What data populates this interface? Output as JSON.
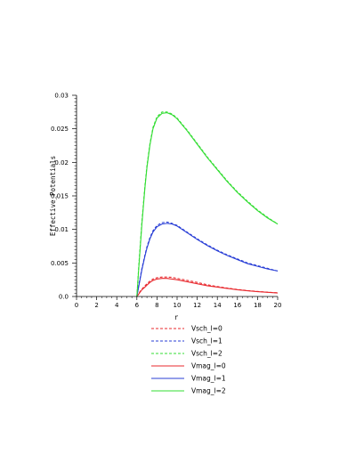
{
  "chart_data": {
    "type": "line",
    "title": "",
    "xlabel": "r",
    "ylabel": "Effective_Potentials",
    "xlim": [
      0,
      20
    ],
    "ylim": [
      0,
      0.03
    ],
    "x_ticks": [
      0,
      2,
      4,
      6,
      8,
      10,
      12,
      14,
      16,
      18,
      20
    ],
    "x_tick_labels": [
      "0",
      "2",
      "4",
      "6",
      "8",
      "10",
      "12",
      "14",
      "16",
      "18",
      "20"
    ],
    "y_ticks": [
      0,
      0.005,
      0.01,
      0.015,
      0.02,
      0.025,
      0.03
    ],
    "y_tick_labels": [
      "0.0",
      "0.005",
      "0.01",
      "0.015",
      "0.02",
      "0.025",
      "0.03"
    ],
    "grid": false,
    "legend_position": "bottom",
    "series": [
      {
        "name": "Vsch_l=0",
        "color": "#e8282d",
        "style": "dashed",
        "x": [
          6.0,
          6.2,
          6.5,
          6.8,
          7.0,
          7.3,
          7.6,
          8.0,
          8.5,
          9.0,
          9.5,
          10.0,
          11.0,
          12.0,
          13.0,
          14.0,
          15.0,
          16.0,
          17.0,
          18.0,
          19.0,
          20.0
        ],
        "y": [
          0.0,
          0.0005,
          0.0011,
          0.0016,
          0.0019,
          0.0023,
          0.0026,
          0.0028,
          0.0029,
          0.0029,
          0.00285,
          0.0027,
          0.0024,
          0.0021,
          0.00175,
          0.00148,
          0.00125,
          0.00105,
          0.00088,
          0.00075,
          0.00064,
          0.00055
        ]
      },
      {
        "name": "Vsch_l=1",
        "color": "#2a3fd6",
        "style": "dashed",
        "x": [
          6.0,
          6.2,
          6.5,
          6.8,
          7.0,
          7.3,
          7.6,
          8.0,
          8.5,
          9.0,
          9.5,
          10.0,
          11.0,
          12.0,
          13.0,
          14.0,
          15.0,
          16.0,
          17.0,
          18.0,
          19.0,
          20.0
        ],
        "y": [
          0.0,
          0.0018,
          0.0042,
          0.0062,
          0.0074,
          0.0088,
          0.0098,
          0.0106,
          0.011,
          0.0111,
          0.0109,
          0.0106,
          0.0096,
          0.0086,
          0.0077,
          0.0069,
          0.0062,
          0.0056,
          0.005,
          0.0046,
          0.0042,
          0.0038
        ]
      },
      {
        "name": "Vsch_l=2",
        "color": "#33dd33",
        "style": "dashed",
        "x": [
          6.0,
          6.2,
          6.5,
          6.8,
          7.0,
          7.3,
          7.6,
          8.0,
          8.5,
          9.0,
          9.5,
          10.0,
          11.0,
          12.0,
          13.0,
          14.0,
          15.0,
          16.0,
          17.0,
          18.0,
          19.0,
          20.0
        ],
        "y": [
          0.0,
          0.0048,
          0.0112,
          0.0165,
          0.0195,
          0.0228,
          0.0252,
          0.0268,
          0.0275,
          0.0275,
          0.0272,
          0.0266,
          0.0248,
          0.0228,
          0.0208,
          0.019,
          0.0172,
          0.0156,
          0.0142,
          0.0129,
          0.0118,
          0.0108
        ]
      },
      {
        "name": "Vmag_l=0",
        "color": "#e8282d",
        "style": "solid",
        "x": [
          6.0,
          6.2,
          6.5,
          6.8,
          7.0,
          7.3,
          7.6,
          8.0,
          8.5,
          9.0,
          9.5,
          10.0,
          11.0,
          12.0,
          13.0,
          14.0,
          15.0,
          16.0,
          17.0,
          18.0,
          19.0,
          20.0
        ],
        "y": [
          0.0,
          0.0004,
          0.001,
          0.0014,
          0.0017,
          0.0021,
          0.0024,
          0.0026,
          0.0027,
          0.0027,
          0.0026,
          0.0025,
          0.0022,
          0.0019,
          0.0016,
          0.0014,
          0.0012,
          0.001,
          0.00085,
          0.00072,
          0.00062,
          0.00052
        ]
      },
      {
        "name": "Vmag_l=1",
        "color": "#2a3fd6",
        "style": "solid",
        "x": [
          6.0,
          6.2,
          6.5,
          6.8,
          7.0,
          7.3,
          7.6,
          8.0,
          8.5,
          9.0,
          9.5,
          10.0,
          11.0,
          12.0,
          13.0,
          14.0,
          15.0,
          16.0,
          17.0,
          18.0,
          19.0,
          20.0
        ],
        "y": [
          0.0,
          0.0016,
          0.004,
          0.006,
          0.0072,
          0.0086,
          0.0096,
          0.0104,
          0.0108,
          0.0109,
          0.0108,
          0.0105,
          0.0095,
          0.0085,
          0.0076,
          0.0068,
          0.0061,
          0.0055,
          0.0049,
          0.0045,
          0.0041,
          0.0038
        ]
      },
      {
        "name": "Vmag_l=2",
        "color": "#33dd33",
        "style": "solid",
        "x": [
          6.0,
          6.2,
          6.5,
          6.8,
          7.0,
          7.3,
          7.6,
          8.0,
          8.5,
          9.0,
          9.5,
          10.0,
          11.0,
          12.0,
          13.0,
          14.0,
          15.0,
          16.0,
          17.0,
          18.0,
          19.0,
          20.0
        ],
        "y": [
          0.0,
          0.0045,
          0.0108,
          0.0162,
          0.0192,
          0.0226,
          0.025,
          0.0266,
          0.0273,
          0.0274,
          0.0271,
          0.0265,
          0.0247,
          0.0227,
          0.0207,
          0.0189,
          0.0171,
          0.0155,
          0.0141,
          0.0128,
          0.0117,
          0.0108
        ]
      }
    ]
  }
}
